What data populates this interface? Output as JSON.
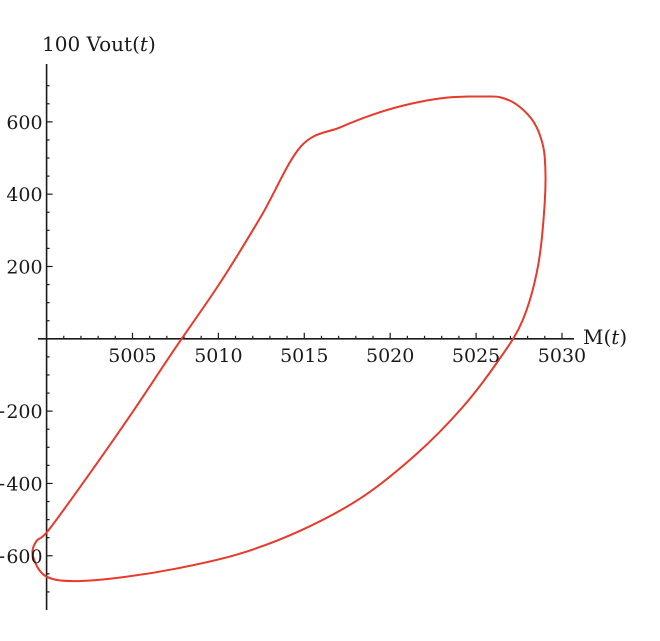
{
  "chart_data": {
    "type": "line",
    "title": "",
    "xlabel": "M(t)",
    "ylabel": "100 Vout(t)",
    "xlabel_parts": {
      "name": "M(",
      "var": "t",
      "close": ")"
    },
    "ylabel_parts": {
      "name": "100 Vout(",
      "var": "t",
      "close": ")"
    },
    "xlim": [
      4999.5,
      5030.7
    ],
    "ylim": [
      -750,
      760
    ],
    "x_ticks": [
      5005,
      5010,
      5015,
      5020,
      5025,
      5030
    ],
    "x_tick_labels": [
      "5005",
      "5010",
      "5015",
      "5020",
      "5025",
      "5030"
    ],
    "y_ticks": [
      -600,
      -400,
      -200,
      200,
      400,
      600
    ],
    "y_tick_labels": [
      "−600",
      "−400",
      "−200",
      "200",
      "400",
      "600"
    ],
    "grid": false,
    "legend": "none",
    "color": "#e8392b",
    "series": [
      {
        "x": [
          5014.8,
          5017.1,
          5019.3,
          5021.3,
          5023.1,
          5024.6,
          5025.7,
          5025.7,
          5026.4,
          5027.3,
          5028.2,
          5028.7,
          5029.0,
          5029.0,
          5028.6,
          5027.7,
          5026.3,
          5024.2,
          5021.5,
          5018.3,
          5014.8,
          5011.2,
          5007.6,
          5004.3,
          5001.5,
          4999.9,
          4999.2,
          4999.4,
          5000.1,
          5002.4,
          5004.9,
          5007.5,
          5010.1,
          5012.5,
          5014.8
        ],
        "y": [
          532,
          585,
          625,
          651,
          666,
          670,
          670,
          670,
          668,
          650,
          610,
          565,
          500,
          380,
          200,
          50,
          -60,
          -190,
          -320,
          -440,
          -530,
          -595,
          -635,
          -660,
          -670,
          -655,
          -600,
          -560,
          -530,
          -380,
          -210,
          -25,
          155,
          340,
          532
        ]
      }
    ]
  }
}
